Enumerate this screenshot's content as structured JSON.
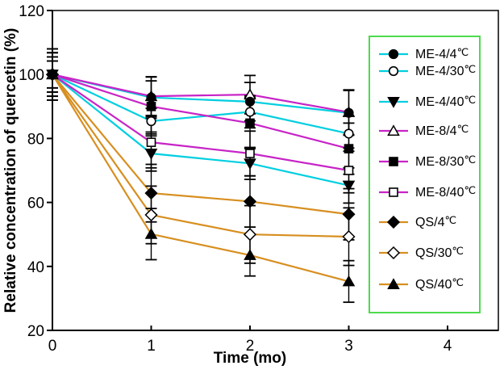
{
  "chart_data": {
    "type": "line",
    "title": "",
    "xlabel": "Time (mo)",
    "ylabel": "Relative concentration of quercetin (%)",
    "x": [
      0,
      1,
      2,
      3
    ],
    "xlim": [
      0,
      4.5
    ],
    "ylim": [
      20,
      120
    ],
    "xticks": [
      0,
      1,
      2,
      3,
      4
    ],
    "yticks": [
      20,
      40,
      60,
      80,
      100,
      120
    ],
    "grid": false,
    "legend_position": "right-inside",
    "legend_border_color": "#4ddb4d",
    "series": [
      {
        "name": "ME-4/4℃",
        "color": "#00cfe0",
        "marker": "circle",
        "fill": "filled",
        "values": [
          100,
          92.8,
          91.5,
          88.0
        ],
        "errors": [
          5.5,
          6.5,
          6.0,
          7.0
        ]
      },
      {
        "name": "ME-4/30℃",
        "color": "#00cfe0",
        "marker": "circle",
        "fill": "open",
        "values": [
          100,
          85.4,
          88.3,
          81.5
        ],
        "errors": [
          4.2,
          4.0,
          5.0,
          5.5
        ]
      },
      {
        "name": "ME-4/40℃",
        "color": "#00cfe0",
        "marker": "triangle-down",
        "fill": "filled",
        "values": [
          100,
          75.3,
          72.2,
          65.3
        ],
        "errors": [
          8.0,
          5.5,
          5.0,
          5.5
        ]
      },
      {
        "name": "ME-8/4℃",
        "color": "#c724c7",
        "marker": "triangle-up",
        "fill": "open",
        "values": [
          100,
          93.2,
          93.7,
          88.2
        ],
        "errors": [
          6.8,
          6.0,
          6.0,
          7.0
        ]
      },
      {
        "name": "ME-8/30℃",
        "color": "#c724c7",
        "marker": "square",
        "fill": "filled",
        "values": [
          100,
          90.0,
          84.8,
          76.8
        ],
        "errors": [
          5.5,
          8.0,
          8.0,
          8.0
        ]
      },
      {
        "name": "ME-8/40℃",
        "color": "#c724c7",
        "marker": "square",
        "fill": "open",
        "values": [
          100,
          78.8,
          75.3,
          70.0
        ],
        "errors": [
          8.0,
          8.0,
          7.0,
          7.0
        ]
      },
      {
        "name": "QS/4℃",
        "color": "#d78f20",
        "marker": "diamond",
        "fill": "filled",
        "values": [
          100,
          62.9,
          60.3,
          56.3
        ],
        "errors": [
          6.8,
          9.0,
          8.0,
          8.0
        ]
      },
      {
        "name": "QS/30℃",
        "color": "#d78f20",
        "marker": "diamond",
        "fill": "open",
        "values": [
          100,
          56.1,
          50.0,
          49.3
        ],
        "errors": [
          4.2,
          9.0,
          9.0,
          9.0
        ]
      },
      {
        "name": "QS/40℃",
        "color": "#d78f20",
        "marker": "triangle-up",
        "fill": "filled",
        "values": [
          100,
          50.1,
          43.5,
          35.3
        ],
        "errors": [
          6.8,
          8.0,
          6.5,
          6.5
        ]
      }
    ]
  }
}
